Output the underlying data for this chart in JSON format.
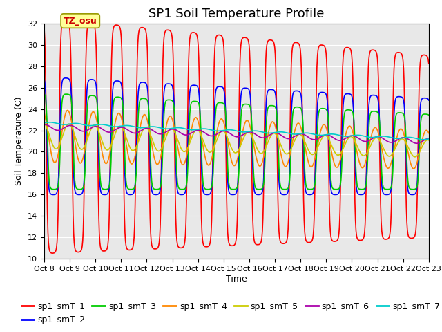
{
  "title": "SP1 Soil Temperature Profile",
  "xlabel": "Time",
  "ylabel": "Soil Temperature (C)",
  "ylim": [
    10,
    32
  ],
  "annotation": "TZ_osu",
  "xtick_labels": [
    "Oct 8",
    "Oct 9",
    "Oct 10",
    "Oct 11",
    "Oct 12",
    "Oct 13",
    "Oct 14",
    "Oct 15",
    "Oct 16",
    "Oct 17",
    "Oct 18",
    "Oct 19",
    "Oct 20",
    "Oct 21",
    "Oct 22",
    "Oct 23"
  ],
  "series_names": [
    "sp1_smT_1",
    "sp1_smT_2",
    "sp1_smT_3",
    "sp1_smT_4",
    "sp1_smT_5",
    "sp1_smT_6",
    "sp1_smT_7"
  ],
  "series_colors": [
    "#FF0000",
    "#0000FF",
    "#00CC00",
    "#FF8800",
    "#CCCC00",
    "#AA00AA",
    "#00CCCC"
  ],
  "linewidth": 1.2,
  "bg_color": "#E8E8E8",
  "title_fontsize": 13,
  "tick_fontsize": 8,
  "legend_fontsize": 9,
  "yticks": [
    10,
    12,
    14,
    16,
    18,
    20,
    22,
    24,
    26,
    28,
    30,
    32
  ]
}
